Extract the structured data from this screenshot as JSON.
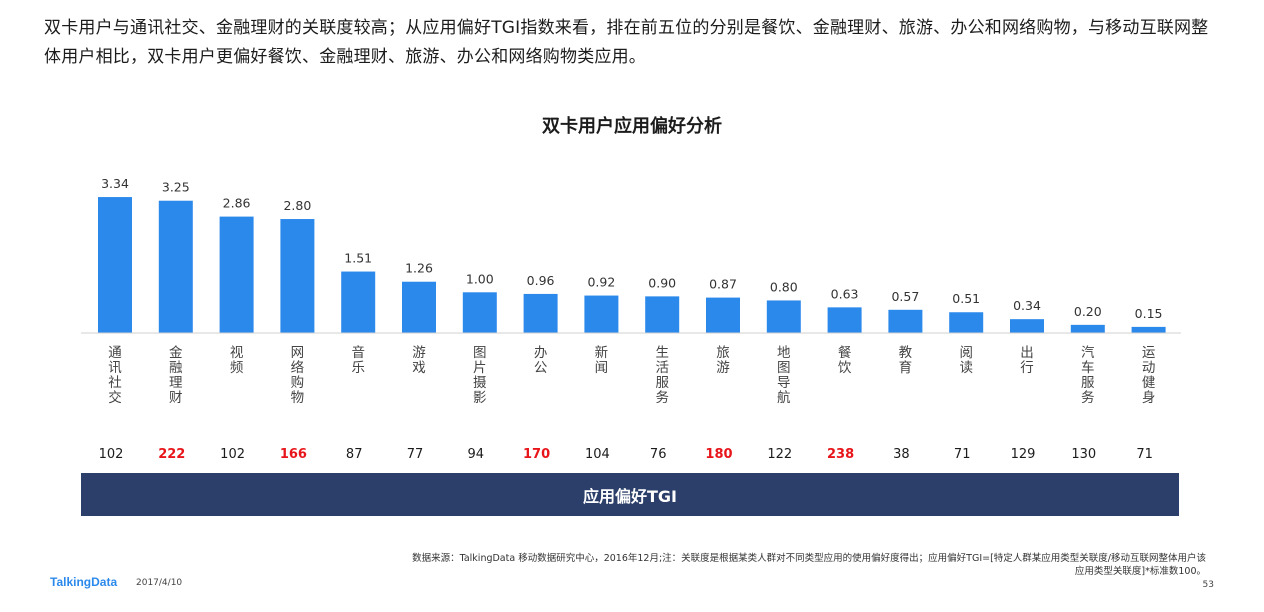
{
  "intro_text": "双卡用户与通讯社交、金融理财的关联度较高；从应用偏好TGI指数来看，排在前五位的分别是餐饮、金融理财、旅游、办公和网络购物，与移动互联网整体用户相比，双卡用户更偏好餐饮、金融理财、旅游、办公和网络购物类应用。",
  "chart_data": {
    "type": "bar",
    "title": "双卡用户应用偏好分析",
    "categories": [
      "通讯社交",
      "金融理财",
      "视频",
      "网络购物",
      "音乐",
      "游戏",
      "图片摄影",
      "办公",
      "新闻",
      "生活服务",
      "旅游",
      "地图导航",
      "餐饮",
      "教育",
      "阅读",
      "出行",
      "汽车服务",
      "运动健身"
    ],
    "values": [
      3.34,
      3.25,
      2.86,
      2.8,
      1.51,
      1.26,
      1.0,
      0.96,
      0.92,
      0.9,
      0.87,
      0.8,
      0.63,
      0.57,
      0.51,
      0.34,
      0.2,
      0.15
    ],
    "value_labels": [
      "3.34",
      "3.25",
      "2.86",
      "2.80",
      "1.51",
      "1.26",
      "1.00",
      "0.96",
      "0.92",
      "0.90",
      "0.87",
      "0.80",
      "0.63",
      "0.57",
      "0.51",
      "0.34",
      "0.20",
      "0.15"
    ],
    "tgi": [
      102,
      222,
      102,
      166,
      87,
      77,
      94,
      170,
      104,
      76,
      180,
      122,
      238,
      38,
      71,
      129,
      130,
      71
    ],
    "tgi_highlight": [
      false,
      true,
      false,
      true,
      false,
      false,
      false,
      true,
      false,
      false,
      true,
      false,
      true,
      false,
      false,
      false,
      false,
      false
    ],
    "tgi_label": "应用偏好TGI",
    "ylim": [
      0,
      3.5
    ],
    "bar_color": "#2b89ec",
    "highlight_color": "#e8161b",
    "normal_tgi_color": "#1c1c1c",
    "grid": false,
    "legend": "none"
  },
  "footer": {
    "source": "数据来源：TalkingData 移动数据研究中心，2016年12月;注：关联度是根据某类人群对不同类型应用的使用偏好度得出；应用偏好TGI=[特定人群某应用类型关联度/移动互联网整体用户该应用类型关联度]*标准数100。",
    "logo": "TalkingData",
    "date": "2017/4/10",
    "page": "53"
  }
}
